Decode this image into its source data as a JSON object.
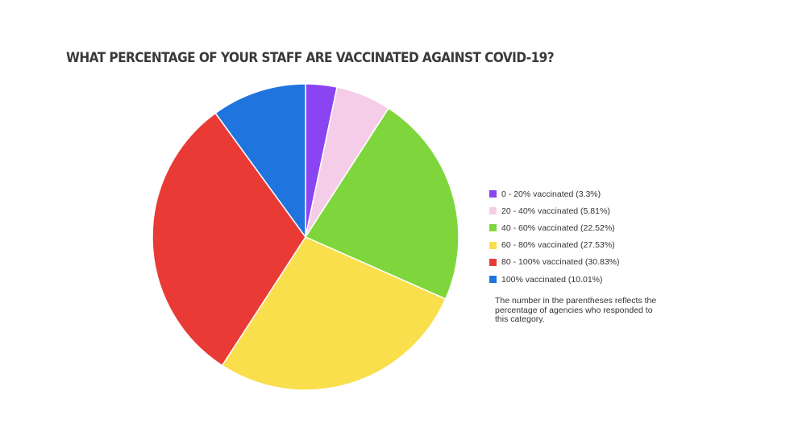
{
  "chart_data": {
    "type": "pie",
    "title": "WHAT PERCENTAGE OF YOUR STAFF ARE VACCINATED AGAINST COVID-19?",
    "categories": [
      "0 - 20% vaccinated (3.3%)",
      "20 - 40% vaccinated (5.81%)",
      "40 - 60% vaccinated (22.52%)",
      "60 - 80% vaccinated (27.53%)",
      "80 - 100% vaccinated (30.83%)",
      "100% vaccinated (10.01%)"
    ],
    "values": [
      3.3,
      5.81,
      22.52,
      27.53,
      30.83,
      10.01
    ],
    "colors": [
      "#8b44f2",
      "#f5cde8",
      "#7fd63c",
      "#fadf4d",
      "#ea3a35",
      "#1f74de"
    ],
    "legend_position": "right",
    "note": "The number in the parentheses reflects the percentage of agencies who responded to this category."
  }
}
